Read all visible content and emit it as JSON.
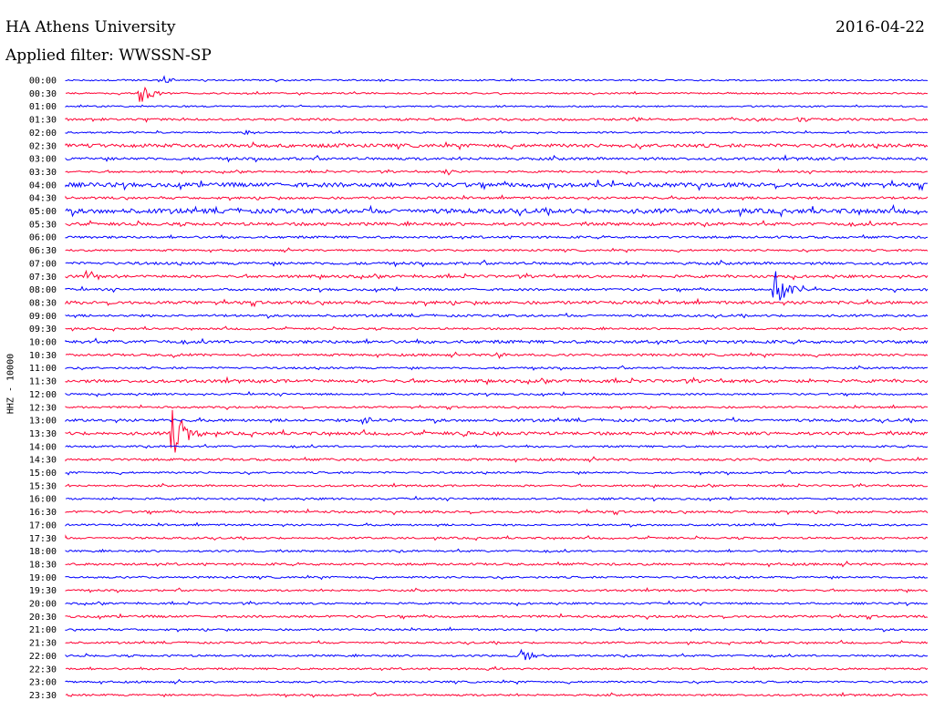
{
  "header": {
    "station": "HA Athens University",
    "date": "2016-04-22",
    "filter": "Applied filter: WWSSN-SP"
  },
  "chart_data": {
    "type": "line",
    "title": "",
    "ylabel": "HHZ - 10000",
    "colors": {
      "even_trace": "#0000ff",
      "odd_trace": "#ff0033",
      "label": "#000000"
    },
    "categories": [
      "00:00",
      "00:30",
      "01:00",
      "01:30",
      "02:00",
      "02:30",
      "03:00",
      "03:30",
      "04:00",
      "04:30",
      "05:00",
      "05:30",
      "06:00",
      "06:30",
      "07:00",
      "07:30",
      "08:00",
      "08:30",
      "09:00",
      "09:30",
      "10:00",
      "10:30",
      "11:00",
      "11:30",
      "12:00",
      "12:30",
      "13:00",
      "13:30",
      "14:00",
      "14:30",
      "15:00",
      "15:30",
      "16:00",
      "16:30",
      "17:00",
      "17:30",
      "18:00",
      "18:30",
      "19:00",
      "19:30",
      "20:00",
      "20:30",
      "21:00",
      "21:30",
      "22:00",
      "22:30",
      "23:00",
      "23:30"
    ],
    "trace_noise": [
      0.8,
      0.8,
      0.8,
      1.2,
      0.8,
      1.8,
      1.4,
      1.0,
      2.2,
      1.2,
      2.4,
      1.6,
      1.2,
      1.0,
      1.4,
      1.4,
      1.2,
      1.6,
      1.2,
      1.0,
      1.6,
      1.2,
      1.0,
      1.6,
      1.0,
      1.0,
      1.4,
      1.6,
      1.0,
      1.2,
      1.0,
      1.0,
      1.0,
      1.2,
      1.0,
      1.0,
      1.0,
      1.2,
      1.0,
      1.0,
      1.0,
      1.2,
      1.0,
      1.0,
      1.0,
      1.0,
      1.0,
      1.0
    ],
    "x_range_minutes": [
      0,
      30
    ],
    "events": [
      {
        "line": "00:00",
        "minute": 3.3,
        "amp": 6
      },
      {
        "line": "00:30",
        "minute": 2.6,
        "amp": 16
      },
      {
        "line": "01:30",
        "minute": 19.8,
        "amp": 4
      },
      {
        "line": "01:30",
        "minute": 25.4,
        "amp": 5
      },
      {
        "line": "02:00",
        "minute": 6.2,
        "amp": 3
      },
      {
        "line": "03:30",
        "minute": 13.1,
        "amp": 5
      },
      {
        "line": "03:30",
        "minute": 27.6,
        "amp": 3
      },
      {
        "line": "04:00",
        "minute": 16.8,
        "amp": 4
      },
      {
        "line": "07:30",
        "minute": 0.7,
        "amp": 8
      },
      {
        "line": "08:00",
        "minute": 24.6,
        "amp": 30
      },
      {
        "line": "10:30",
        "minute": 3.8,
        "amp": 4
      },
      {
        "line": "10:30",
        "minute": 15.0,
        "amp": 4
      },
      {
        "line": "13:00",
        "minute": 10.3,
        "amp": 6
      },
      {
        "line": "13:30",
        "minute": 3.7,
        "amp": 40
      },
      {
        "line": "13:30",
        "minute": 13.8,
        "amp": 3
      },
      {
        "line": "22:00",
        "minute": 15.8,
        "amp": 10
      },
      {
        "line": "22:30",
        "minute": 14.7,
        "amp": 3
      }
    ]
  }
}
